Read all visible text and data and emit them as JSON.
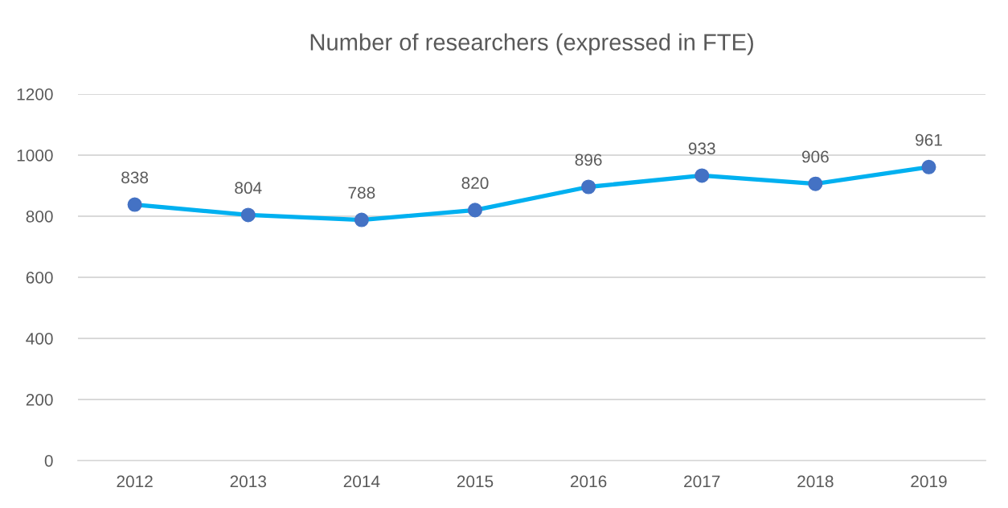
{
  "chart_data": {
    "type": "line",
    "title": "Number of researchers (expressed in FTE)",
    "categories": [
      "2012",
      "2013",
      "2014",
      "2015",
      "2016",
      "2017",
      "2018",
      "2019"
    ],
    "series": [
      {
        "color": "#00b0f0",
        "values": [
          838,
          804,
          788,
          820,
          896,
          933,
          906,
          961
        ]
      }
    ],
    "ylim": [
      0,
      1200
    ],
    "yticks": [
      0,
      200,
      400,
      600,
      800,
      1000,
      1200
    ],
    "grid": "y",
    "marker": "circle",
    "line_style": "solid",
    "data_labels": true
  }
}
